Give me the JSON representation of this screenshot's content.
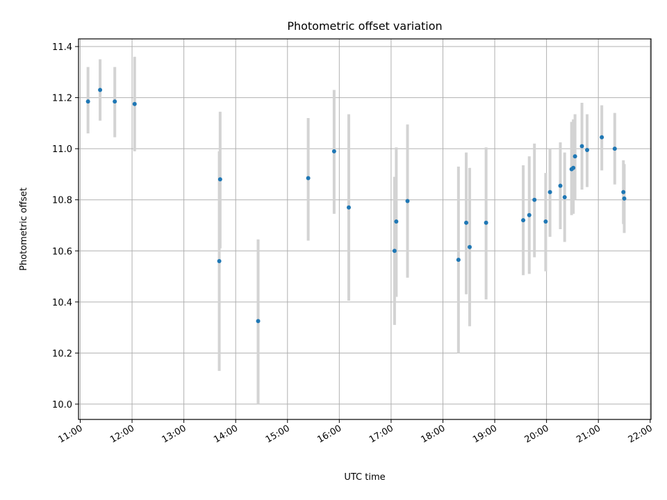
{
  "chart_data": {
    "type": "scatter",
    "title": "Photometric offset variation",
    "xlabel": "UTC time",
    "ylabel": "Photometric offset",
    "xlim": [
      "11:00",
      "22:00"
    ],
    "ylim": [
      9.94,
      11.43
    ],
    "grid": true,
    "xticks": [
      "11:00",
      "12:00",
      "13:00",
      "14:00",
      "15:00",
      "16:00",
      "17:00",
      "18:00",
      "19:00",
      "20:00",
      "21:00",
      "22:00"
    ],
    "yticks": [
      "10.0",
      "10.2",
      "10.4",
      "10.6",
      "10.8",
      "11.0",
      "11.2",
      "11.4"
    ],
    "colors": {
      "points": "#1f77b4",
      "error_bars": "#d3d3d3",
      "grid": "#b0b0b0"
    },
    "points": [
      {
        "x": "11:09",
        "y": 11.185,
        "lo": 11.06,
        "hi": 11.32
      },
      {
        "x": "11:23",
        "y": 11.23,
        "lo": 11.11,
        "hi": 11.35
      },
      {
        "x": "11:40",
        "y": 11.185,
        "lo": 11.045,
        "hi": 11.32
      },
      {
        "x": "12:03",
        "y": 11.175,
        "lo": 10.99,
        "hi": 11.36
      },
      {
        "x": "13:41",
        "y": 10.56,
        "lo": 10.13,
        "hi": 10.99
      },
      {
        "x": "13:42",
        "y": 10.88,
        "lo": 10.61,
        "hi": 11.145
      },
      {
        "x": "14:26",
        "y": 10.325,
        "lo": 10.0,
        "hi": 10.645
      },
      {
        "x": "15:24",
        "y": 10.885,
        "lo": 10.64,
        "hi": 11.12
      },
      {
        "x": "15:54",
        "y": 10.99,
        "lo": 10.745,
        "hi": 11.23
      },
      {
        "x": "16:11",
        "y": 10.77,
        "lo": 10.405,
        "hi": 11.135
      },
      {
        "x": "17:04",
        "y": 10.6,
        "lo": 10.31,
        "hi": 10.89
      },
      {
        "x": "17:06",
        "y": 10.715,
        "lo": 10.42,
        "hi": 11.005
      },
      {
        "x": "17:19",
        "y": 10.795,
        "lo": 10.495,
        "hi": 11.095
      },
      {
        "x": "18:18",
        "y": 10.565,
        "lo": 10.2,
        "hi": 10.93
      },
      {
        "x": "18:27",
        "y": 10.71,
        "lo": 10.43,
        "hi": 10.985
      },
      {
        "x": "18:31",
        "y": 10.615,
        "lo": 10.305,
        "hi": 10.925
      },
      {
        "x": "18:50",
        "y": 10.71,
        "lo": 10.41,
        "hi": 11.005
      },
      {
        "x": "19:33",
        "y": 10.72,
        "lo": 10.505,
        "hi": 10.935
      },
      {
        "x": "19:40",
        "y": 10.74,
        "lo": 10.51,
        "hi": 10.97
      },
      {
        "x": "19:46",
        "y": 10.8,
        "lo": 10.575,
        "hi": 11.02
      },
      {
        "x": "19:59",
        "y": 10.715,
        "lo": 10.52,
        "hi": 10.905
      },
      {
        "x": "20:04",
        "y": 10.83,
        "lo": 10.655,
        "hi": 11.0
      },
      {
        "x": "20:16",
        "y": 10.855,
        "lo": 10.685,
        "hi": 11.025
      },
      {
        "x": "20:21",
        "y": 10.81,
        "lo": 10.635,
        "hi": 10.985
      },
      {
        "x": "20:29",
        "y": 10.92,
        "lo": 10.74,
        "hi": 11.105
      },
      {
        "x": "20:31",
        "y": 10.925,
        "lo": 10.745,
        "hi": 11.115
      },
      {
        "x": "20:33",
        "y": 10.97,
        "lo": 10.8,
        "hi": 11.135
      },
      {
        "x": "20:41",
        "y": 11.01,
        "lo": 10.84,
        "hi": 11.18
      },
      {
        "x": "20:47",
        "y": 10.995,
        "lo": 10.85,
        "hi": 11.135
      },
      {
        "x": "21:04",
        "y": 11.045,
        "lo": 10.915,
        "hi": 11.17
      },
      {
        "x": "21:19",
        "y": 11.0,
        "lo": 10.86,
        "hi": 11.14
      },
      {
        "x": "21:29",
        "y": 10.83,
        "lo": 10.705,
        "hi": 10.955
      },
      {
        "x": "21:30",
        "y": 10.805,
        "lo": 10.67,
        "hi": 10.94
      }
    ]
  }
}
